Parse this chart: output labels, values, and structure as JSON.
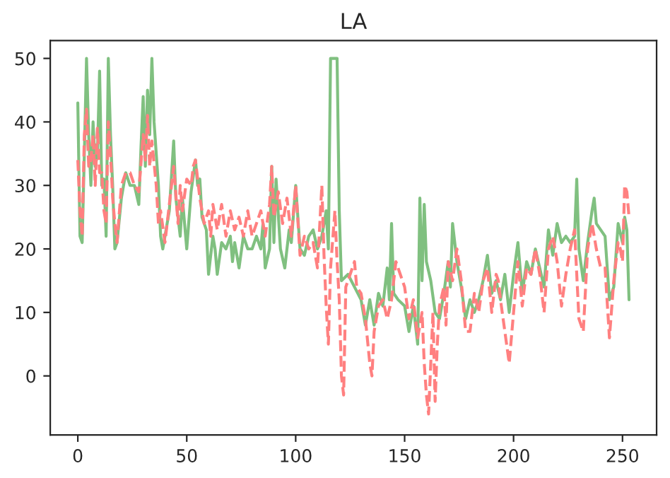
{
  "chart_data": {
    "type": "line",
    "title": "LA",
    "xlim": [
      -12.65,
      265.65
    ],
    "ylim": [
      -9.3,
      52.8
    ],
    "xticks": [
      0,
      50,
      100,
      150,
      200,
      250
    ],
    "yticks": [
      0,
      10,
      20,
      30,
      40,
      50
    ],
    "grid": false,
    "marker": "none",
    "series": [
      {
        "color": "#80c080",
        "line_style": "solid",
        "x": [
          0,
          1,
          2,
          3,
          4,
          5,
          6,
          7,
          8,
          9,
          10,
          11,
          12,
          13,
          14,
          15,
          16,
          17,
          18,
          20,
          22,
          24,
          26,
          28,
          29,
          30,
          31,
          32,
          33,
          34,
          35,
          37,
          38,
          39,
          40,
          42,
          44,
          45,
          47,
          48,
          50,
          52,
          54,
          55,
          56,
          57,
          59,
          60,
          62,
          63,
          64,
          66,
          68,
          70,
          71,
          72,
          74,
          76,
          78,
          80,
          82,
          84,
          85,
          86,
          88,
          89,
          90,
          91,
          93,
          95,
          97,
          98,
          100,
          102,
          104,
          106,
          108,
          110,
          112,
          114,
          115,
          116,
          119,
          120,
          121,
          124,
          127,
          130,
          132,
          134,
          136,
          138,
          140,
          142,
          143,
          144,
          145,
          147,
          150,
          152,
          154,
          156,
          157,
          158,
          159,
          160,
          162,
          164,
          166,
          168,
          170,
          171,
          172,
          174,
          176,
          178,
          180,
          182,
          184,
          186,
          188,
          190,
          192,
          194,
          196,
          198,
          200,
          202,
          204,
          206,
          208,
          210,
          212,
          214,
          216,
          218,
          220,
          222,
          224,
          226,
          228,
          229,
          230,
          232,
          234,
          236,
          237,
          238,
          240,
          242,
          244,
          246,
          248,
          250,
          251,
          252,
          253
        ],
        "values": [
          43,
          22,
          21,
          35,
          50,
          38,
          30,
          40,
          33,
          35,
          48,
          30,
          31,
          22,
          50,
          38,
          30,
          20,
          21,
          28,
          32,
          30,
          30,
          27,
          36,
          44,
          33,
          45,
          38,
          50,
          40,
          30,
          22,
          20,
          22,
          26,
          37,
          28,
          22,
          28,
          20,
          29,
          34,
          30,
          31,
          25,
          23,
          16,
          22,
          20,
          16,
          21,
          20,
          22,
          18,
          21,
          17,
          22,
          20,
          20,
          22,
          20,
          24,
          17,
          20,
          33,
          21,
          31,
          20,
          17,
          23,
          21,
          30,
          20,
          19,
          22,
          23,
          20,
          22,
          26,
          20,
          50,
          50,
          26,
          15,
          16,
          14,
          12,
          8,
          12,
          8,
          13,
          11,
          17,
          12,
          24,
          13,
          12,
          11,
          7,
          11,
          5,
          28,
          15,
          27,
          18,
          15,
          10,
          9,
          13,
          18,
          14,
          24,
          18,
          14,
          9,
          12,
          10,
          12,
          15,
          19,
          13,
          15,
          12,
          16,
          10,
          16,
          21,
          13,
          18,
          16,
          20,
          17,
          14,
          23,
          19,
          24,
          21,
          22,
          21,
          22,
          31,
          20,
          15,
          21,
          26,
          28,
          24,
          23,
          22,
          12,
          14,
          24,
          21,
          25,
          23,
          12
        ]
      },
      {
        "color": "#ff8080",
        "line_style": "dashed",
        "x": [
          0,
          1,
          2,
          3,
          4,
          5,
          6,
          7,
          8,
          9,
          10,
          11,
          12,
          13,
          14,
          15,
          16,
          17,
          18,
          20,
          22,
          24,
          26,
          28,
          30,
          31,
          32,
          33,
          34,
          36,
          37,
          38,
          40,
          42,
          44,
          46,
          47,
          48,
          50,
          52,
          53,
          54,
          56,
          58,
          60,
          61,
          62,
          64,
          66,
          68,
          70,
          72,
          74,
          76,
          78,
          80,
          82,
          84,
          86,
          88,
          89,
          90,
          92,
          94,
          96,
          98,
          100,
          102,
          104,
          106,
          108,
          110,
          112,
          113,
          114,
          115,
          116,
          118,
          119,
          120,
          121,
          122,
          123,
          125,
          127,
          128,
          130,
          132,
          134,
          135,
          136,
          138,
          140,
          142,
          144,
          146,
          148,
          150,
          152,
          154,
          156,
          158,
          159,
          160,
          161,
          162,
          163,
          164,
          165,
          166,
          168,
          169,
          170,
          172,
          174,
          176,
          178,
          180,
          182,
          184,
          186,
          188,
          190,
          192,
          193,
          194,
          196,
          198,
          200,
          202,
          204,
          206,
          208,
          210,
          212,
          214,
          216,
          218,
          220,
          222,
          224,
          226,
          228,
          230,
          232,
          234,
          236,
          238,
          240,
          242,
          244,
          246,
          248,
          249,
          250,
          251,
          252,
          253
        ],
        "values": [
          34,
          26,
          22,
          38,
          42,
          33,
          34,
          38,
          30,
          39,
          32,
          32,
          26,
          24,
          40,
          35,
          28,
          24,
          21,
          30,
          32,
          32,
          30,
          29,
          38,
          34,
          41,
          33,
          37,
          30,
          24,
          26,
          21,
          27,
          33,
          24,
          30,
          26,
          31,
          30,
          33,
          34,
          28,
          24,
          26,
          22,
          27,
          23,
          27,
          22,
          26,
          23,
          25,
          22,
          26,
          22,
          24,
          26,
          22,
          27,
          33,
          25,
          29,
          24,
          28,
          22,
          30,
          19,
          22,
          20,
          21,
          17,
          30,
          19,
          11,
          5,
          17,
          26,
          18,
          12,
          0,
          -3,
          14,
          16,
          18,
          14,
          13,
          9,
          2,
          0,
          7,
          11,
          12,
          9,
          12,
          18,
          16,
          14,
          9,
          12,
          6,
          10,
          2,
          -3,
          -6,
          2,
          10,
          -4,
          5,
          11,
          14,
          8,
          18,
          15,
          20,
          15,
          7,
          7,
          13,
          10,
          15,
          17,
          10,
          16,
          15,
          12,
          7,
          2,
          10,
          18,
          11,
          17,
          16,
          20,
          16,
          10,
          20,
          22,
          18,
          11,
          16,
          20,
          23,
          9,
          7,
          20,
          24,
          20,
          17,
          17,
          6,
          15,
          21,
          20,
          18,
          30,
          29,
          25
        ]
      }
    ]
  }
}
